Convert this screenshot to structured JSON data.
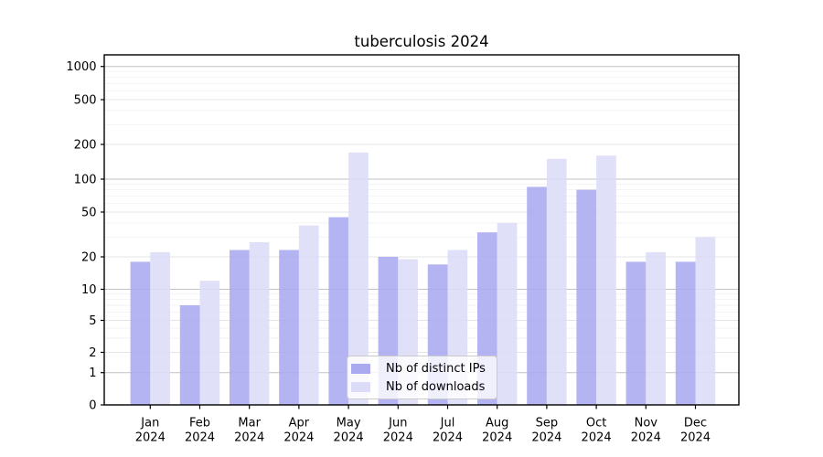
{
  "figure": {
    "background": "#ffffff",
    "text_color": "#000000",
    "grid_major_decade_color": "#c2c2c2",
    "grid_major_color": "#e4e4e4",
    "grid_minor_color": "#f2f2f2"
  },
  "chart_data": {
    "type": "bar",
    "title": "tuberculosis 2024",
    "xlabel": "",
    "ylabel": "",
    "yscale": "symlog",
    "yticks": [
      0,
      1,
      2,
      5,
      10,
      20,
      50,
      100,
      200,
      500,
      1000
    ],
    "ylim": [
      0,
      1270
    ],
    "grid": true,
    "legend_position": "lower center",
    "categories": [
      "Jan 2024",
      "Feb 2024",
      "Mar 2024",
      "Apr 2024",
      "May 2024",
      "Jun 2024",
      "Jul 2024",
      "Aug 2024",
      "Sep 2024",
      "Oct 2024",
      "Nov 2024",
      "Dec 2024"
    ],
    "series": [
      {
        "name": "Nb of distinct IPs",
        "color": "#aaaaf0",
        "values": [
          18,
          7,
          23,
          23,
          45,
          20,
          17,
          33,
          85,
          80,
          18,
          18
        ]
      },
      {
        "name": "Nb of downloads",
        "color": "#dcdcf8",
        "values": [
          22,
          12,
          27,
          38,
          170,
          19,
          23,
          40,
          150,
          160,
          22,
          30
        ]
      }
    ]
  }
}
